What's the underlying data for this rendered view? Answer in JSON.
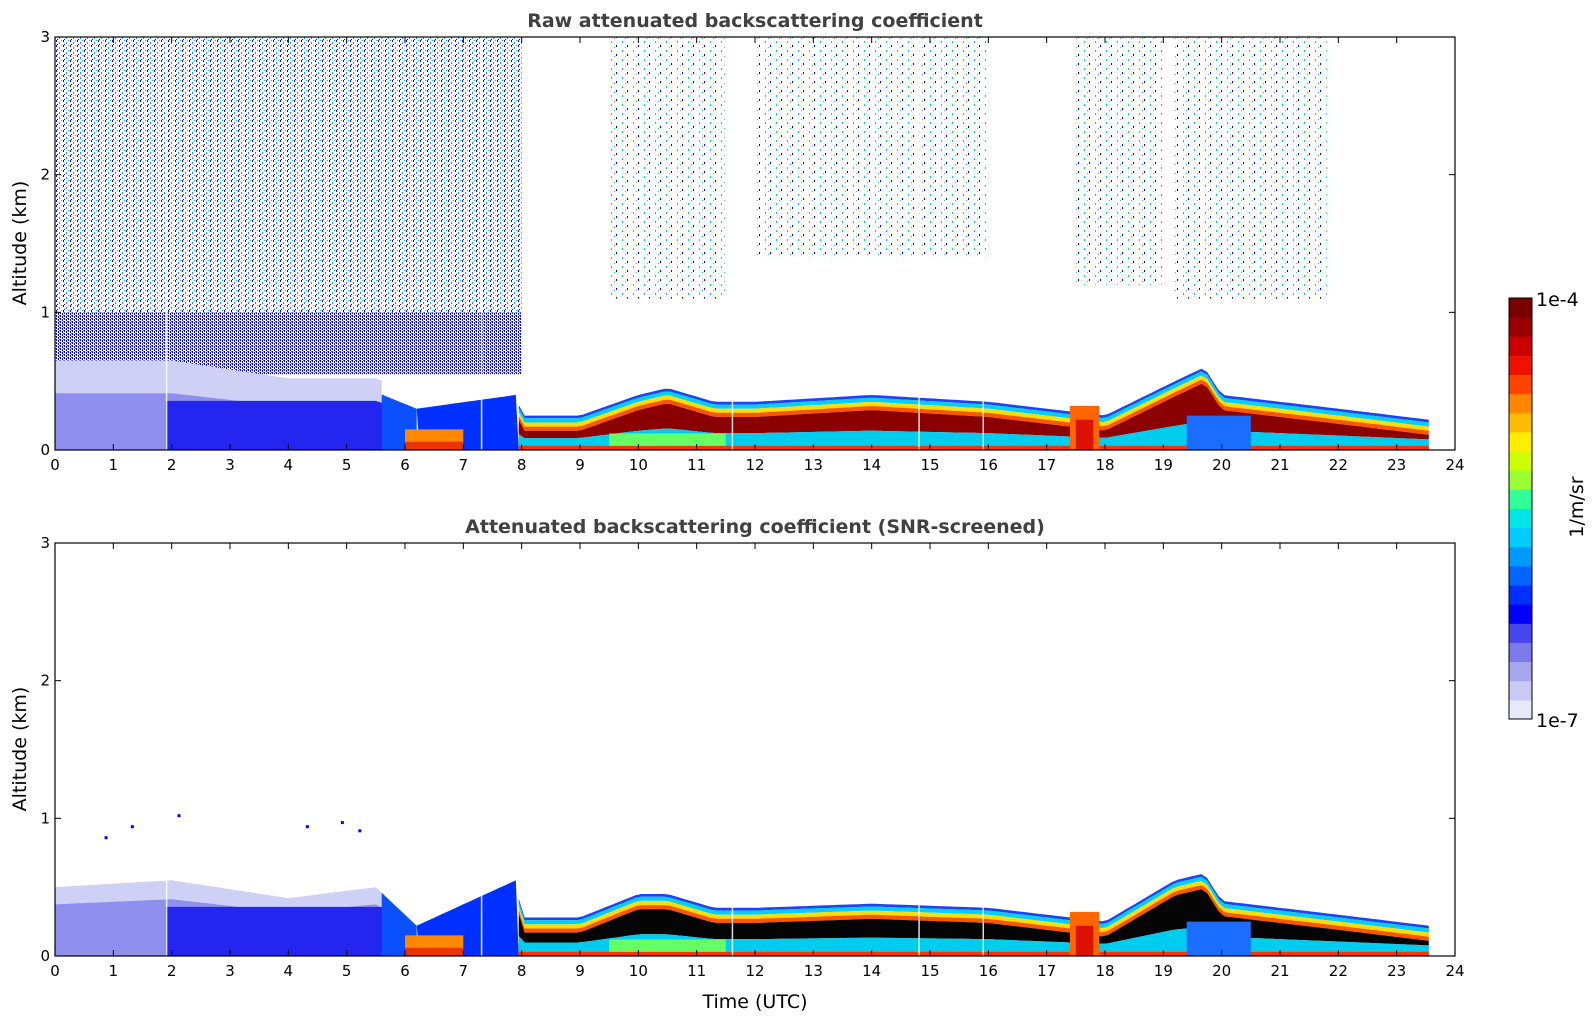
{
  "chart_data": [
    {
      "type": "heatmap",
      "title": "Raw attenuated backscattering coefficient",
      "xlabel": "",
      "ylabel": "Altitude (km)",
      "xlim": [
        0,
        24
      ],
      "ylim": [
        0,
        3
      ],
      "xticks": [
        0,
        1,
        2,
        3,
        4,
        5,
        6,
        7,
        8,
        9,
        10,
        11,
        12,
        13,
        14,
        15,
        16,
        17,
        18,
        19,
        20,
        21,
        22,
        23,
        24
      ],
      "yticks": [
        0,
        1,
        2,
        3
      ],
      "boundary_layer_top_km": [
        [
          0,
          0.55
        ],
        [
          2,
          0.55
        ],
        [
          4,
          0.42
        ],
        [
          5.5,
          0.42
        ],
        [
          6.2,
          0.3
        ],
        [
          7.9,
          0.4
        ],
        [
          8,
          0.25
        ],
        [
          9,
          0.25
        ],
        [
          10,
          0.4
        ],
        [
          10.5,
          0.45
        ],
        [
          11.3,
          0.35
        ],
        [
          12,
          0.35
        ],
        [
          14,
          0.4
        ],
        [
          16,
          0.35
        ],
        [
          17,
          0.3
        ],
        [
          18,
          0.25
        ],
        [
          19.2,
          0.5
        ],
        [
          19.7,
          0.6
        ],
        [
          20,
          0.4
        ],
        [
          22,
          0.3
        ],
        [
          23.55,
          0.22
        ]
      ],
      "screened": false
    },
    {
      "type": "heatmap",
      "title": "Attenuated backscattering coefficient (SNR-screened)",
      "xlabel": "Time (UTC)",
      "ylabel": "Altitude (km)",
      "xlim": [
        0,
        24
      ],
      "ylim": [
        0,
        3
      ],
      "xticks": [
        0,
        1,
        2,
        3,
        4,
        5,
        6,
        7,
        8,
        9,
        10,
        11,
        12,
        13,
        14,
        15,
        16,
        17,
        18,
        19,
        20,
        21,
        22,
        23,
        24
      ],
      "yticks": [
        0,
        1,
        2,
        3
      ],
      "boundary_layer_top_km": [
        [
          0,
          0.5
        ],
        [
          2,
          0.55
        ],
        [
          4,
          0.42
        ],
        [
          5.5,
          0.5
        ],
        [
          6.2,
          0.22
        ],
        [
          7.9,
          0.55
        ],
        [
          8,
          0.28
        ],
        [
          9,
          0.28
        ],
        [
          10,
          0.45
        ],
        [
          10.5,
          0.45
        ],
        [
          11.3,
          0.35
        ],
        [
          12,
          0.35
        ],
        [
          14,
          0.38
        ],
        [
          16,
          0.35
        ],
        [
          17,
          0.3
        ],
        [
          18,
          0.25
        ],
        [
          19.2,
          0.55
        ],
        [
          19.7,
          0.6
        ],
        [
          20,
          0.4
        ],
        [
          22,
          0.3
        ],
        [
          23.55,
          0.22
        ]
      ],
      "screened": true
    }
  ],
  "colorbar": {
    "max_label": "1e-4",
    "min_label": "1e-7",
    "label": "1/m/sr",
    "colors": [
      "#e8e8fb",
      "#c9c9f5",
      "#a6a6ef",
      "#7a7ae8",
      "#4646f0",
      "#0000ff",
      "#0030ff",
      "#0066ff",
      "#0099ff",
      "#00ccff",
      "#00e6e6",
      "#33ff99",
      "#99ff33",
      "#ccff00",
      "#ffee00",
      "#ffbb00",
      "#ff8800",
      "#ff4400",
      "#ee1100",
      "#cc0000",
      "#990000",
      "#7a0000"
    ]
  }
}
